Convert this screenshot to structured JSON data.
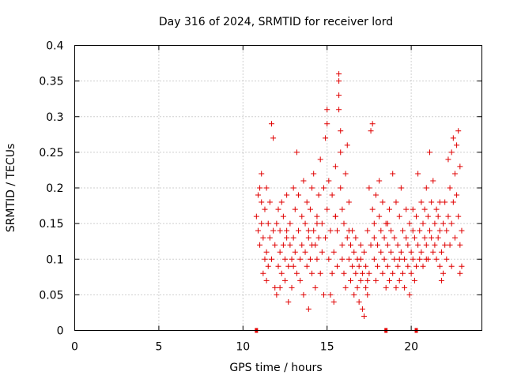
{
  "chart_data": {
    "type": "scatter",
    "title": "Day 316 of 2024, SRMTID for receiver lord",
    "xlabel": "GPS time / hours",
    "ylabel": "SRMTID / TECUs",
    "xlim": [
      0,
      24.2
    ],
    "ylim": [
      0,
      0.4
    ],
    "xticks": [
      0,
      5,
      10,
      15,
      20
    ],
    "xtick_labels": [
      "0",
      "5",
      "10",
      "15",
      "20"
    ],
    "yticks": [
      0,
      0.05,
      0.1,
      0.15,
      0.2,
      0.25,
      0.3,
      0.35,
      0.4
    ],
    "ytick_labels": [
      "0",
      "0.05",
      "0.1",
      "0.15",
      "0.2",
      "0.25",
      "0.3",
      "0.35",
      "0.4"
    ],
    "grid": true,
    "marker": "plus",
    "series_color": "#e00000",
    "series": [
      {
        "name": "SRMTID",
        "points": [
          [
            10.8,
            0.16
          ],
          [
            10.9,
            0.14
          ],
          [
            10.9,
            0.19
          ],
          [
            11.0,
            0.2
          ],
          [
            11.0,
            0.12
          ],
          [
            11.1,
            0.18
          ],
          [
            11.1,
            0.22
          ],
          [
            11.2,
            0.08
          ],
          [
            11.2,
            0.13
          ],
          [
            11.3,
            0.1
          ],
          [
            11.3,
            0.17
          ],
          [
            11.4,
            0.2
          ],
          [
            11.4,
            0.11
          ],
          [
            11.5,
            0.15
          ],
          [
            11.5,
            0.09
          ],
          [
            11.6,
            0.13
          ],
          [
            11.6,
            0.18
          ],
          [
            11.7,
            0.29
          ],
          [
            11.7,
            0.1
          ],
          [
            11.8,
            0.27
          ],
          [
            11.8,
            0.14
          ],
          [
            11.9,
            0.06
          ],
          [
            11.9,
            0.12
          ],
          [
            12.0,
            0.05
          ],
          [
            12.0,
            0.15
          ],
          [
            12.1,
            0.09
          ],
          [
            12.1,
            0.17
          ],
          [
            12.2,
            0.11
          ],
          [
            12.2,
            0.14
          ],
          [
            12.3,
            0.18
          ],
          [
            12.3,
            0.08
          ],
          [
            12.4,
            0.12
          ],
          [
            12.4,
            0.16
          ],
          [
            12.5,
            0.1
          ],
          [
            12.5,
            0.07
          ],
          [
            12.6,
            0.13
          ],
          [
            12.6,
            0.19
          ],
          [
            12.7,
            0.09
          ],
          [
            12.7,
            0.04
          ],
          [
            12.8,
            0.12
          ],
          [
            12.8,
            0.15
          ],
          [
            12.9,
            0.1
          ],
          [
            12.9,
            0.06
          ],
          [
            13.0,
            0.2
          ],
          [
            13.0,
            0.13
          ],
          [
            13.1,
            0.17
          ],
          [
            13.1,
            0.11
          ],
          [
            13.2,
            0.08
          ],
          [
            13.2,
            0.25
          ],
          [
            13.3,
            0.14
          ],
          [
            13.3,
            0.19
          ],
          [
            13.4,
            0.1
          ],
          [
            13.4,
            0.07
          ],
          [
            13.5,
            0.16
          ],
          [
            13.5,
            0.12
          ],
          [
            13.6,
            0.21
          ],
          [
            13.6,
            0.05
          ],
          [
            13.7,
            0.11
          ],
          [
            13.7,
            0.15
          ],
          [
            13.8,
            0.09
          ],
          [
            13.8,
            0.18
          ],
          [
            13.9,
            0.13
          ],
          [
            13.9,
            0.03
          ],
          [
            14.0,
            0.1
          ],
          [
            14.0,
            0.17
          ],
          [
            14.1,
            0.2
          ],
          [
            14.1,
            0.08
          ],
          [
            14.2,
            0.14
          ],
          [
            14.2,
            0.22
          ],
          [
            14.3,
            0.12
          ],
          [
            14.3,
            0.06
          ],
          [
            14.4,
            0.16
          ],
          [
            14.4,
            0.1
          ],
          [
            14.5,
            0.19
          ],
          [
            14.5,
            0.13
          ],
          [
            14.6,
            0.08
          ],
          [
            14.6,
            0.24
          ],
          [
            14.7,
            0.11
          ],
          [
            14.7,
            0.15
          ],
          [
            14.8,
            0.2
          ],
          [
            14.8,
            0.05
          ],
          [
            14.9,
            0.13
          ],
          [
            14.9,
            0.27
          ],
          [
            15.0,
            0.31
          ],
          [
            15.0,
            0.17
          ],
          [
            15.0,
            0.29
          ],
          [
            15.1,
            0.1
          ],
          [
            15.1,
            0.21
          ],
          [
            15.2,
            0.05
          ],
          [
            15.2,
            0.14
          ],
          [
            15.3,
            0.08
          ],
          [
            15.3,
            0.19
          ],
          [
            15.4,
            0.11
          ],
          [
            15.4,
            0.04
          ],
          [
            15.5,
            0.16
          ],
          [
            15.5,
            0.23
          ],
          [
            15.6,
            0.09
          ],
          [
            15.6,
            0.14
          ],
          [
            15.7,
            0.36
          ],
          [
            15.7,
            0.35
          ],
          [
            15.7,
            0.33
          ],
          [
            15.7,
            0.31
          ],
          [
            15.8,
            0.28
          ],
          [
            15.8,
            0.25
          ],
          [
            15.8,
            0.2
          ],
          [
            15.9,
            0.17
          ],
          [
            15.9,
            0.12
          ],
          [
            16.0,
            0.08
          ],
          [
            16.0,
            0.15
          ],
          [
            16.1,
            0.22
          ],
          [
            16.1,
            0.06
          ],
          [
            16.2,
            0.26
          ],
          [
            16.2,
            0.13
          ],
          [
            16.3,
            0.1
          ],
          [
            16.3,
            0.18
          ],
          [
            16.4,
            0.07
          ],
          [
            16.4,
            0.12
          ],
          [
            16.5,
            0.09
          ],
          [
            16.5,
            0.14
          ],
          [
            16.6,
            0.05
          ],
          [
            16.6,
            0.11
          ],
          [
            16.7,
            0.08
          ],
          [
            16.7,
            0.13
          ],
          [
            16.8,
            0.06
          ],
          [
            16.8,
            0.1
          ],
          [
            16.9,
            0.04
          ],
          [
            16.9,
            0.09
          ],
          [
            17.0,
            0.07
          ],
          [
            17.0,
            0.12
          ],
          [
            17.1,
            0.03
          ],
          [
            17.1,
            0.08
          ],
          [
            17.2,
            0.02
          ],
          [
            17.2,
            0.11
          ],
          [
            17.3,
            0.06
          ],
          [
            17.3,
            0.09
          ],
          [
            17.4,
            0.05
          ],
          [
            17.4,
            0.14
          ],
          [
            17.5,
            0.08
          ],
          [
            17.5,
            0.2
          ],
          [
            17.6,
            0.12
          ],
          [
            17.6,
            0.28
          ],
          [
            17.7,
            0.29
          ],
          [
            17.7,
            0.17
          ],
          [
            17.8,
            0.1
          ],
          [
            17.8,
            0.15
          ],
          [
            17.9,
            0.07
          ],
          [
            17.9,
            0.19
          ],
          [
            18.0,
            0.12
          ],
          [
            18.0,
            0.09
          ],
          [
            18.1,
            0.16
          ],
          [
            18.1,
            0.21
          ],
          [
            18.2,
            0.11
          ],
          [
            18.2,
            0.14
          ],
          [
            18.3,
            0.08
          ],
          [
            18.3,
            0.18
          ],
          [
            18.4,
            0.13
          ],
          [
            18.4,
            0.1
          ],
          [
            18.5,
            0.06
          ],
          [
            18.5,
            0.15
          ],
          [
            18.6,
            0.12
          ],
          [
            18.6,
            0.09
          ],
          [
            18.7,
            0.17
          ],
          [
            18.7,
            0.07
          ],
          [
            18.8,
            0.11
          ],
          [
            18.8,
            0.14
          ],
          [
            18.9,
            0.08
          ],
          [
            18.9,
            0.22
          ],
          [
            19.0,
            0.1
          ],
          [
            19.0,
            0.13
          ],
          [
            19.1,
            0.06
          ],
          [
            19.1,
            0.18
          ],
          [
            19.2,
            0.09
          ],
          [
            19.2,
            0.12
          ],
          [
            19.3,
            0.07
          ],
          [
            19.3,
            0.16
          ],
          [
            19.4,
            0.11
          ],
          [
            19.4,
            0.2
          ],
          [
            19.5,
            0.08
          ],
          [
            19.5,
            0.14
          ],
          [
            19.6,
            0.1
          ],
          [
            19.6,
            0.06
          ],
          [
            19.7,
            0.13
          ],
          [
            19.7,
            0.17
          ],
          [
            19.8,
            0.09
          ],
          [
            19.8,
            0.12
          ],
          [
            19.9,
            0.05
          ],
          [
            19.9,
            0.15
          ],
          [
            20.0,
            0.11
          ],
          [
            20.0,
            0.08
          ],
          [
            20.1,
            0.14
          ],
          [
            20.1,
            0.1
          ],
          [
            20.2,
            0.07
          ],
          [
            20.2,
            0.13
          ],
          [
            20.3,
            0.16
          ],
          [
            20.3,
            0.09
          ],
          [
            20.4,
            0.12
          ],
          [
            20.4,
            0.22
          ],
          [
            20.5,
            0.1
          ],
          [
            20.5,
            0.14
          ],
          [
            20.6,
            0.18
          ],
          [
            20.6,
            0.11
          ],
          [
            20.7,
            0.15
          ],
          [
            20.7,
            0.09
          ],
          [
            20.8,
            0.13
          ],
          [
            20.8,
            0.17
          ],
          [
            20.9,
            0.2
          ],
          [
            20.9,
            0.12
          ],
          [
            21.0,
            0.16
          ],
          [
            21.0,
            0.1
          ],
          [
            21.1,
            0.14
          ],
          [
            21.1,
            0.25
          ],
          [
            21.2,
            0.13
          ],
          [
            21.2,
            0.18
          ],
          [
            21.3,
            0.11
          ],
          [
            21.3,
            0.21
          ],
          [
            21.4,
            0.15
          ],
          [
            21.4,
            0.12
          ],
          [
            21.5,
            0.17
          ],
          [
            21.5,
            0.1
          ],
          [
            21.6,
            0.13
          ],
          [
            21.6,
            0.16
          ],
          [
            21.7,
            0.09
          ],
          [
            21.7,
            0.14
          ],
          [
            21.8,
            0.07
          ],
          [
            21.8,
            0.11
          ],
          [
            21.9,
            0.15
          ],
          [
            21.9,
            0.08
          ],
          [
            22.0,
            0.12
          ],
          [
            22.0,
            0.18
          ],
          [
            22.1,
            0.1
          ],
          [
            22.1,
            0.14
          ],
          [
            22.2,
            0.24
          ],
          [
            22.2,
            0.16
          ],
          [
            22.3,
            0.2
          ],
          [
            22.3,
            0.12
          ],
          [
            22.4,
            0.25
          ],
          [
            22.4,
            0.15
          ],
          [
            22.5,
            0.27
          ],
          [
            22.5,
            0.18
          ],
          [
            22.6,
            0.22
          ],
          [
            22.6,
            0.13
          ],
          [
            22.7,
            0.26
          ],
          [
            22.7,
            0.19
          ],
          [
            22.8,
            0.28
          ],
          [
            22.8,
            0.16
          ],
          [
            22.9,
            0.23
          ],
          [
            22.9,
            0.12
          ],
          [
            22.9,
            0.08
          ],
          [
            23.0,
            0.14
          ],
          [
            23.0,
            0.09
          ],
          [
            11.4,
            0.07
          ],
          [
            12.2,
            0.06
          ],
          [
            13.0,
            0.09
          ],
          [
            13.9,
            0.14
          ],
          [
            14.4,
            0.15
          ],
          [
            15.5,
            0.16
          ],
          [
            16.3,
            0.14
          ],
          [
            17.0,
            0.1
          ],
          [
            17.8,
            0.13
          ],
          [
            18.6,
            0.15
          ],
          [
            19.3,
            0.1
          ],
          [
            20.1,
            0.17
          ],
          [
            20.9,
            0.1
          ],
          [
            21.7,
            0.18
          ],
          [
            22.4,
            0.09
          ],
          [
            11.1,
            0.15
          ],
          [
            12.6,
            0.14
          ],
          [
            14.1,
            0.12
          ],
          [
            15.9,
            0.1
          ],
          [
            17.4,
            0.07
          ]
        ]
      }
    ],
    "axis_markers": [
      10.8,
      18.5,
      20.3
    ]
  }
}
